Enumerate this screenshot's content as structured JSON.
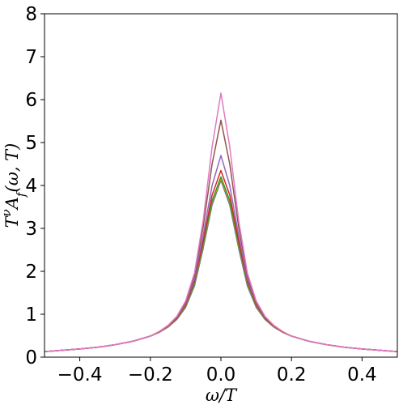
{
  "chart_data": {
    "type": "line",
    "xlabel": "ω/T",
    "ylabel": "T^νA_f(ω, T)",
    "xlim": [
      -0.5,
      0.5
    ],
    "ylim": [
      0,
      8
    ],
    "x_ticks": [
      "−0.4",
      "−0.2",
      "0.0",
      "0.2",
      "0.4"
    ],
    "x_tick_values": [
      -0.4,
      -0.2,
      0.0,
      0.2,
      0.4
    ],
    "y_ticks": [
      "0",
      "1",
      "2",
      "3",
      "4",
      "5",
      "6",
      "7",
      "8"
    ],
    "y_tick_values": [
      0,
      1,
      2,
      3,
      4,
      5,
      6,
      7,
      8
    ],
    "grid": false,
    "legend": "none",
    "x": [
      -0.5,
      -0.45,
      -0.4,
      -0.35,
      -0.3,
      -0.25,
      -0.2,
      -0.175,
      -0.15,
      -0.125,
      -0.1,
      -0.075,
      -0.05,
      -0.025,
      0.0,
      0.025,
      0.05,
      0.075,
      0.1,
      0.125,
      0.15,
      0.175,
      0.2,
      0.25,
      0.3,
      0.35,
      0.4,
      0.45,
      0.5
    ],
    "series": [
      {
        "color": "#1f77b4",
        "values": [
          0.13,
          0.16,
          0.19,
          0.23,
          0.29,
          0.37,
          0.49,
          0.58,
          0.7,
          0.88,
          1.16,
          1.66,
          2.55,
          3.55,
          4.12,
          3.55,
          2.55,
          1.66,
          1.16,
          0.88,
          0.7,
          0.58,
          0.49,
          0.37,
          0.29,
          0.23,
          0.19,
          0.16,
          0.13
        ]
      },
      {
        "color": "#ff7f0e",
        "values": [
          0.13,
          0.16,
          0.19,
          0.23,
          0.29,
          0.37,
          0.49,
          0.58,
          0.71,
          0.89,
          1.18,
          1.7,
          2.6,
          3.6,
          4.15,
          3.6,
          2.6,
          1.7,
          1.18,
          0.89,
          0.71,
          0.58,
          0.49,
          0.37,
          0.29,
          0.23,
          0.19,
          0.16,
          0.13
        ]
      },
      {
        "color": "#2ca02c",
        "values": [
          0.13,
          0.16,
          0.19,
          0.23,
          0.29,
          0.37,
          0.49,
          0.59,
          0.72,
          0.9,
          1.2,
          1.73,
          2.65,
          3.65,
          4.2,
          3.65,
          2.65,
          1.73,
          1.2,
          0.9,
          0.72,
          0.59,
          0.49,
          0.37,
          0.29,
          0.23,
          0.19,
          0.16,
          0.13
        ]
      },
      {
        "color": "#d62728",
        "values": [
          0.13,
          0.16,
          0.19,
          0.23,
          0.29,
          0.37,
          0.49,
          0.59,
          0.72,
          0.91,
          1.22,
          1.77,
          2.72,
          3.78,
          4.35,
          3.78,
          2.72,
          1.77,
          1.22,
          0.91,
          0.72,
          0.59,
          0.49,
          0.37,
          0.29,
          0.23,
          0.19,
          0.16,
          0.13
        ]
      },
      {
        "color": "#9467bd",
        "values": [
          0.13,
          0.16,
          0.19,
          0.23,
          0.29,
          0.37,
          0.49,
          0.59,
          0.73,
          0.92,
          1.25,
          1.82,
          2.85,
          4.0,
          4.7,
          4.0,
          2.85,
          1.82,
          1.25,
          0.92,
          0.73,
          0.59,
          0.49,
          0.37,
          0.29,
          0.23,
          0.19,
          0.16,
          0.13
        ]
      },
      {
        "color": "#8c564b",
        "values": [
          0.13,
          0.16,
          0.19,
          0.23,
          0.29,
          0.37,
          0.49,
          0.59,
          0.73,
          0.93,
          1.28,
          1.9,
          3.05,
          4.5,
          5.52,
          4.5,
          3.05,
          1.9,
          1.28,
          0.93,
          0.73,
          0.59,
          0.49,
          0.37,
          0.29,
          0.23,
          0.19,
          0.16,
          0.13
        ]
      },
      {
        "color": "#e377c2",
        "values": [
          0.13,
          0.16,
          0.19,
          0.23,
          0.29,
          0.37,
          0.49,
          0.6,
          0.74,
          0.95,
          1.31,
          1.96,
          3.2,
          4.9,
          6.15,
          4.9,
          3.2,
          1.96,
          1.31,
          0.95,
          0.74,
          0.6,
          0.49,
          0.37,
          0.29,
          0.23,
          0.19,
          0.16,
          0.13
        ]
      }
    ]
  }
}
